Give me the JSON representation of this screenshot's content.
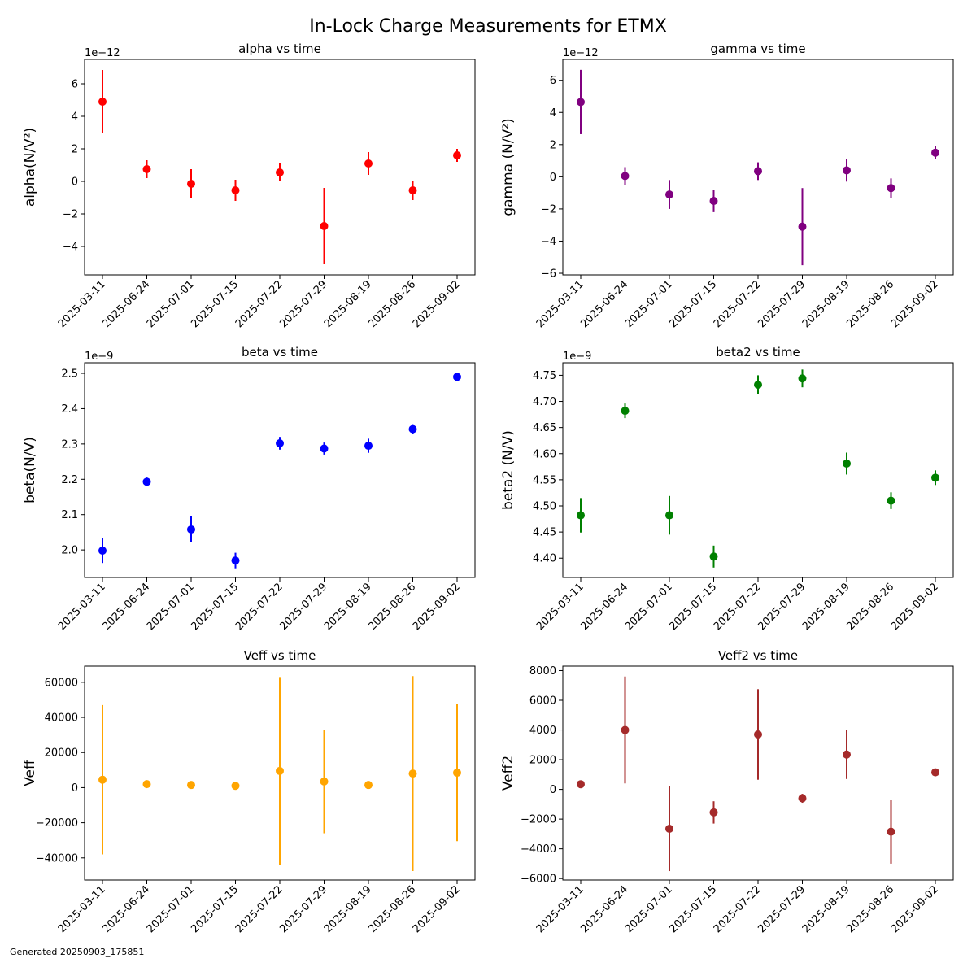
{
  "suptitle": "In-Lock Charge Measurements for ETMX",
  "footer": "Generated 20250903_175851",
  "chart_data": [
    {
      "type": "scatter",
      "title": "alpha vs time",
      "ylabel": "alpha(N/V²)",
      "offset_text": "1e−12",
      "color": "#ff0000",
      "categories": [
        "2025-03-11",
        "2025-06-24",
        "2025-07-01",
        "2025-07-15",
        "2025-07-22",
        "2025-07-29",
        "2025-08-19",
        "2025-08-26",
        "2025-09-02"
      ],
      "values": [
        4.9,
        0.75,
        -0.15,
        -0.55,
        0.55,
        -2.75,
        1.1,
        -0.55,
        1.6
      ],
      "errors": [
        1.95,
        0.55,
        0.9,
        0.65,
        0.55,
        2.35,
        0.7,
        0.6,
        0.4
      ],
      "ylim": [
        -5.75,
        7.5
      ],
      "yticks": [
        -4,
        -2,
        0,
        2,
        4,
        6
      ]
    },
    {
      "type": "scatter",
      "title": "gamma vs time",
      "ylabel": "gamma (N/V²)",
      "offset_text": "1e−12",
      "color": "#800080",
      "categories": [
        "2025-03-11",
        "2025-06-24",
        "2025-07-01",
        "2025-07-15",
        "2025-07-22",
        "2025-07-29",
        "2025-08-19",
        "2025-08-26",
        "2025-09-02"
      ],
      "values": [
        4.65,
        0.05,
        -1.1,
        -1.5,
        0.35,
        -3.1,
        0.4,
        -0.7,
        1.5
      ],
      "errors": [
        2.0,
        0.55,
        0.9,
        0.7,
        0.55,
        2.4,
        0.7,
        0.6,
        0.4
      ],
      "ylim": [
        -6.1,
        7.3
      ],
      "yticks": [
        -6,
        -4,
        -2,
        0,
        2,
        4,
        6
      ]
    },
    {
      "type": "scatter",
      "title": "beta vs time",
      "ylabel": "beta(N/V)",
      "offset_text": "1e−9",
      "color": "#0000ff",
      "categories": [
        "2025-03-11",
        "2025-06-24",
        "2025-07-01",
        "2025-07-15",
        "2025-07-22",
        "2025-07-29",
        "2025-08-19",
        "2025-08-26",
        "2025-09-02"
      ],
      "values": [
        1.998,
        2.193,
        2.058,
        1.97,
        2.302,
        2.287,
        2.295,
        2.342,
        2.49
      ],
      "errors": [
        0.035,
        0.012,
        0.037,
        0.022,
        0.018,
        0.017,
        0.02,
        0.014,
        0.012
      ],
      "ylim": [
        1.922,
        2.53
      ],
      "yticks": [
        2.0,
        2.1,
        2.2,
        2.3,
        2.4,
        2.5
      ]
    },
    {
      "type": "scatter",
      "title": "beta2 vs time",
      "ylabel": "beta2 (N/V)",
      "offset_text": "1e−9",
      "color": "#008000",
      "categories": [
        "2025-03-11",
        "2025-06-24",
        "2025-07-01",
        "2025-07-15",
        "2025-07-22",
        "2025-07-29",
        "2025-08-19",
        "2025-08-26",
        "2025-09-02"
      ],
      "values": [
        4.482,
        4.682,
        4.482,
        4.403,
        4.732,
        4.744,
        4.581,
        4.51,
        4.554
      ],
      "errors": [
        0.033,
        0.014,
        0.037,
        0.021,
        0.018,
        0.017,
        0.021,
        0.016,
        0.014
      ],
      "ylim": [
        4.363,
        4.774
      ],
      "yticks": [
        4.4,
        4.45,
        4.5,
        4.55,
        4.6,
        4.65,
        4.7,
        4.75
      ]
    },
    {
      "type": "scatter",
      "title": "Veff vs time",
      "ylabel": "Veff",
      "offset_text": "",
      "color": "#ffa500",
      "categories": [
        "2025-03-11",
        "2025-06-24",
        "2025-07-01",
        "2025-07-15",
        "2025-07-22",
        "2025-07-29",
        "2025-08-19",
        "2025-08-26",
        "2025-09-02"
      ],
      "values": [
        4500,
        2000,
        1500,
        1000,
        9500,
        3500,
        1500,
        8000,
        8500
      ],
      "errors": [
        42500,
        400,
        400,
        400,
        53500,
        29500,
        400,
        55500,
        39000
      ],
      "ylim": [
        -52600,
        69200
      ],
      "yticks": [
        -40000,
        -20000,
        0,
        20000,
        40000,
        60000
      ]
    },
    {
      "type": "scatter",
      "title": "Veff2 vs time",
      "ylabel": "Veff2",
      "offset_text": "",
      "color": "#a52a2a",
      "categories": [
        "2025-03-11",
        "2025-06-24",
        "2025-07-01",
        "2025-07-15",
        "2025-07-22",
        "2025-07-29",
        "2025-08-19",
        "2025-08-26",
        "2025-09-02"
      ],
      "values": [
        350,
        4000,
        -2650,
        -1550,
        3700,
        -600,
        2350,
        -2850,
        1150
      ],
      "errors": [
        50,
        3600,
        2850,
        750,
        3050,
        300,
        1650,
        2150,
        80
      ],
      "ylim": [
        -6100,
        8300
      ],
      "yticks": [
        -6000,
        -4000,
        -2000,
        0,
        2000,
        4000,
        6000,
        8000
      ]
    }
  ]
}
